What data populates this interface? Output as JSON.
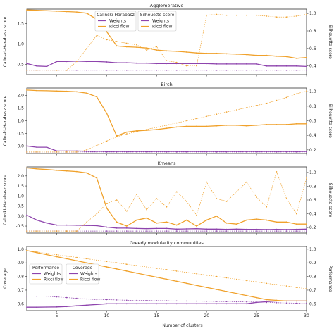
{
  "colors": {
    "weights": "#8e44ad",
    "ricci": "#f0a12b",
    "frame": "#333333"
  },
  "xlabel": "Number of clusters",
  "chart_data": [
    {
      "type": "line",
      "title": "Agglomerative",
      "ylabel_left": "Calinski-Harabasz score",
      "ylabel_right": "Silhouette score",
      "left_ticks": [
        "0.5",
        "1.0",
        "1.5"
      ],
      "right_ticks": [
        "0.4",
        "0.6",
        "0.8",
        "1.0"
      ],
      "legend_left": {
        "title": "Calinski-Harabasz",
        "entries": [
          "Weights",
          "Ricci flow"
        ]
      },
      "legend_right": {
        "title": "Silhouette score",
        "entries": [
          "Weights",
          "Ricci flow"
        ]
      },
      "xlim": [
        2,
        30
      ],
      "left_ylim": [
        0.25,
        1.85
      ],
      "right_ylim": [
        0.3,
        1.05
      ],
      "x": [
        2,
        3,
        4,
        5,
        6,
        7,
        8,
        9,
        10,
        11,
        12,
        13,
        14,
        15,
        16,
        17,
        18,
        19,
        20,
        21,
        22,
        23,
        24,
        25,
        26,
        27,
        28,
        29,
        30
      ],
      "series": [
        {
          "name": "Weights",
          "axis": "left",
          "style": "solid",
          "color_key": "weights",
          "values": [
            0.52,
            0.46,
            0.45,
            0.57,
            0.57,
            0.58,
            0.57,
            0.57,
            0.56,
            0.54,
            0.54,
            0.53,
            0.53,
            0.52,
            0.52,
            0.52,
            0.52,
            0.52,
            0.52,
            0.51,
            0.51,
            0.51,
            0.51,
            0.51,
            0.46,
            0.46,
            0.46,
            0.46,
            0.45
          ]
        },
        {
          "name": "Ricci flow",
          "axis": "left",
          "style": "solid",
          "color_key": "ricci",
          "values": [
            1.83,
            1.82,
            1.81,
            1.8,
            1.79,
            1.78,
            1.75,
            1.6,
            1.3,
            0.95,
            0.93,
            0.92,
            0.9,
            0.85,
            0.83,
            0.82,
            0.8,
            0.78,
            0.77,
            0.77,
            0.76,
            0.75,
            0.74,
            0.72,
            0.72,
            0.7,
            0.69,
            0.65,
            0.67
          ]
        },
        {
          "name": "Weights",
          "axis": "right",
          "style": "dotted",
          "color_key": "weights",
          "values": [
            0.35,
            0.35,
            0.35,
            0.35,
            0.35,
            0.35,
            0.35,
            0.35,
            0.35,
            0.35,
            0.35,
            0.35,
            0.35,
            0.35,
            0.35,
            0.35,
            0.35,
            0.35,
            0.35,
            0.35,
            0.35,
            0.35,
            0.35,
            0.35,
            0.35,
            0.35,
            0.35,
            0.35,
            0.35
          ]
        },
        {
          "name": "Ricci flow",
          "axis": "right",
          "style": "dotted",
          "color_key": "ricci",
          "values": [
            0.35,
            0.35,
            0.35,
            0.35,
            0.35,
            0.45,
            0.6,
            0.75,
            0.7,
            0.68,
            0.66,
            0.64,
            0.58,
            0.62,
            0.46,
            0.44,
            0.4,
            0.4,
            0.98,
            0.99,
            0.98,
            0.98,
            0.98,
            0.98,
            0.97,
            0.96,
            0.96,
            0.97,
            0.99
          ]
        }
      ]
    },
    {
      "type": "line",
      "title": "Birch",
      "ylabel_left": "Calinski-Harabasz score",
      "ylabel_right": "Silhouette score",
      "left_ticks": [
        "0.0",
        "0.5",
        "1.0",
        "1.5",
        "2.0"
      ],
      "right_ticks": [
        "0.2",
        "0.4",
        "0.6",
        "0.8",
        "1.0"
      ],
      "xlim": [
        2,
        30
      ],
      "left_ylim": [
        -0.3,
        2.3
      ],
      "right_ylim": [
        0.15,
        1.05
      ],
      "x": [
        2,
        3,
        4,
        5,
        6,
        7,
        8,
        9,
        10,
        11,
        12,
        13,
        14,
        15,
        16,
        17,
        18,
        19,
        20,
        21,
        22,
        23,
        24,
        25,
        26,
        27,
        28,
        29,
        30
      ],
      "series": [
        {
          "name": "Weights",
          "axis": "left",
          "style": "solid",
          "color_key": "weights",
          "values": [
            0.0,
            -0.05,
            -0.05,
            -0.2,
            -0.2,
            -0.2,
            -0.21,
            -0.21,
            -0.22,
            -0.22,
            -0.22,
            -0.22,
            -0.22,
            -0.22,
            -0.22,
            -0.22,
            -0.22,
            -0.22,
            -0.22,
            -0.22,
            -0.22,
            -0.22,
            -0.22,
            -0.22,
            -0.22,
            -0.22,
            -0.22,
            -0.22,
            -0.22
          ]
        },
        {
          "name": "Ricci flow",
          "axis": "left",
          "style": "solid",
          "color_key": "ricci",
          "values": [
            2.22,
            2.2,
            2.19,
            2.18,
            2.17,
            2.15,
            2.1,
            1.95,
            1.3,
            0.4,
            0.55,
            0.6,
            0.62,
            0.65,
            0.7,
            0.75,
            0.78,
            0.78,
            0.78,
            0.8,
            0.82,
            0.82,
            0.8,
            0.82,
            0.85,
            0.85,
            0.85,
            0.88,
            0.88
          ]
        },
        {
          "name": "Weights",
          "axis": "right",
          "style": "dotted",
          "color_key": "weights",
          "values": [
            0.17,
            0.17,
            0.17,
            0.17,
            0.17,
            0.17,
            0.17,
            0.17,
            0.17,
            0.17,
            0.17,
            0.17,
            0.17,
            0.17,
            0.17,
            0.17,
            0.17,
            0.17,
            0.17,
            0.17,
            0.17,
            0.17,
            0.17,
            0.17,
            0.17,
            0.17,
            0.17,
            0.17,
            0.17
          ]
        },
        {
          "name": "Ricci flow",
          "axis": "right",
          "style": "dotted",
          "color_key": "ricci",
          "values": [
            0.17,
            0.17,
            0.17,
            0.17,
            0.17,
            0.17,
            0.2,
            0.26,
            0.32,
            0.38,
            0.42,
            0.45,
            0.48,
            0.51,
            0.54,
            0.57,
            0.6,
            0.63,
            0.66,
            0.69,
            0.72,
            0.75,
            0.78,
            0.81,
            0.84,
            0.88,
            0.92,
            0.97,
            1.01
          ]
        }
      ]
    },
    {
      "type": "line",
      "title": "Kmeans",
      "ylabel_left": "Calinski-Harabasz score",
      "ylabel_right": "Silhouette score",
      "left_ticks": [
        "-0.5",
        "0.0",
        "0.5",
        "1.0",
        "1.5",
        "2.0"
      ],
      "right_ticks": [
        "0.2",
        "0.4",
        "0.6",
        "0.8",
        "1.0"
      ],
      "xlim": [
        2,
        30
      ],
      "left_ylim": [
        -0.85,
        2.45
      ],
      "right_ylim": [
        0.12,
        1.08
      ],
      "x": [
        2,
        3,
        4,
        5,
        6,
        7,
        8,
        9,
        10,
        11,
        12,
        13,
        14,
        15,
        16,
        17,
        18,
        19,
        20,
        21,
        22,
        23,
        24,
        25,
        26,
        27,
        28,
        29,
        30
      ],
      "series": [
        {
          "name": "Weights",
          "axis": "left",
          "style": "solid",
          "color_key": "weights",
          "values": [
            0.05,
            -0.2,
            -0.35,
            -0.45,
            -0.45,
            -0.46,
            -0.47,
            -0.48,
            -0.55,
            -0.6,
            -0.6,
            -0.62,
            -0.63,
            -0.62,
            -0.62,
            -0.65,
            -0.64,
            -0.63,
            -0.65,
            -0.65,
            -0.66,
            -0.65,
            -0.66,
            -0.66,
            -0.67,
            -0.66,
            -0.67,
            -0.66,
            -0.65
          ]
        },
        {
          "name": "Ricci flow",
          "axis": "left",
          "style": "solid",
          "color_key": "ricci",
          "values": [
            2.4,
            2.35,
            2.32,
            2.28,
            2.25,
            2.22,
            2.15,
            1.9,
            0.4,
            -0.3,
            -0.5,
            -0.2,
            -0.1,
            -0.35,
            -0.3,
            -0.45,
            -0.2,
            -0.5,
            -0.2,
            0.0,
            -0.35,
            -0.4,
            -0.2,
            -0.15,
            -0.2,
            -0.3,
            -0.3,
            -0.4,
            -0.4
          ]
        },
        {
          "name": "Weights",
          "axis": "right",
          "style": "dotted",
          "color_key": "weights",
          "values": [
            0.15,
            0.15,
            0.15,
            0.15,
            0.15,
            0.15,
            0.15,
            0.15,
            0.15,
            0.15,
            0.15,
            0.15,
            0.15,
            0.15,
            0.15,
            0.15,
            0.15,
            0.15,
            0.15,
            0.15,
            0.15,
            0.15,
            0.15,
            0.15,
            0.15,
            0.15,
            0.15,
            0.15,
            0.15
          ]
        },
        {
          "name": "Ricci flow",
          "axis": "right",
          "style": "dotted",
          "color_key": "ricci",
          "values": [
            0.15,
            0.15,
            0.15,
            0.15,
            0.15,
            0.15,
            0.28,
            0.4,
            0.55,
            0.6,
            0.44,
            0.68,
            0.46,
            0.62,
            0.5,
            0.72,
            0.58,
            0.38,
            0.86,
            0.62,
            0.58,
            0.72,
            0.86,
            0.64,
            0.5,
            1.01,
            0.62,
            0.4,
            0.92
          ]
        }
      ]
    },
    {
      "type": "line",
      "title": "Greedy modularity communities",
      "ylabel_left": "Coverage",
      "ylabel_right": "Performance",
      "left_ticks": [
        "0.6",
        "0.7",
        "0.8",
        "0.9",
        "1.0"
      ],
      "right_ticks": [
        "0.6",
        "0.7",
        "0.8",
        "0.9",
        "1.0"
      ],
      "legend_left": {
        "title": "Performance",
        "entries": [
          "Weights",
          "Ricci flow"
        ]
      },
      "legend_right": {
        "title": "Coverage",
        "entries": [
          "Weights",
          "Ricci flow"
        ]
      },
      "xlim": [
        2,
        30
      ],
      "left_ylim": [
        0.55,
        1.02
      ],
      "right_ylim": [
        0.55,
        1.02
      ],
      "x": [
        2,
        3,
        4,
        5,
        6,
        7,
        8,
        9,
        10,
        11,
        12,
        13,
        14,
        15,
        16,
        17,
        18,
        19,
        20,
        21,
        22,
        23,
        24,
        25,
        26,
        27,
        28,
        29,
        30
      ],
      "series": [
        {
          "name": "Weights",
          "axis": "right",
          "style": "solid",
          "color_key": "weights",
          "values": [
            0.575,
            0.575,
            0.576,
            0.577,
            0.58,
            0.585,
            0.59,
            0.595,
            0.6,
            0.6,
            0.6,
            0.6,
            0.6,
            0.6,
            0.6,
            0.6,
            0.6,
            0.6,
            0.6,
            0.6,
            0.6,
            0.6,
            0.6,
            0.61,
            0.615,
            0.62,
            0.62,
            0.62,
            0.62
          ]
        },
        {
          "name": "Ricci flow",
          "axis": "right",
          "style": "solid",
          "color_key": "ricci",
          "values": [
            0.99,
            0.975,
            0.96,
            0.945,
            0.93,
            0.915,
            0.9,
            0.885,
            0.87,
            0.855,
            0.84,
            0.825,
            0.81,
            0.795,
            0.78,
            0.765,
            0.75,
            0.735,
            0.72,
            0.705,
            0.69,
            0.675,
            0.66,
            0.645,
            0.63,
            0.625,
            0.62,
            0.62,
            0.62
          ]
        },
        {
          "name": "Weights",
          "axis": "left",
          "style": "dotted",
          "color_key": "weights",
          "values": [
            0.655,
            0.655,
            0.655,
            0.65,
            0.645,
            0.64,
            0.635,
            0.63,
            0.63,
            0.628,
            0.626,
            0.625,
            0.624,
            0.623,
            0.622,
            0.621,
            0.62,
            0.619,
            0.618,
            0.617,
            0.616,
            0.615,
            0.614,
            0.612,
            0.61,
            0.608,
            0.606,
            0.605,
            0.603
          ]
        },
        {
          "name": "Ricci flow",
          "axis": "left",
          "style": "dotted",
          "color_key": "ricci",
          "values": [
            0.99,
            0.98,
            0.97,
            0.96,
            0.95,
            0.94,
            0.93,
            0.92,
            0.91,
            0.9,
            0.89,
            0.88,
            0.87,
            0.86,
            0.85,
            0.84,
            0.83,
            0.82,
            0.81,
            0.8,
            0.79,
            0.78,
            0.77,
            0.76,
            0.75,
            0.74,
            0.73,
            0.72,
            0.71
          ]
        }
      ]
    }
  ]
}
